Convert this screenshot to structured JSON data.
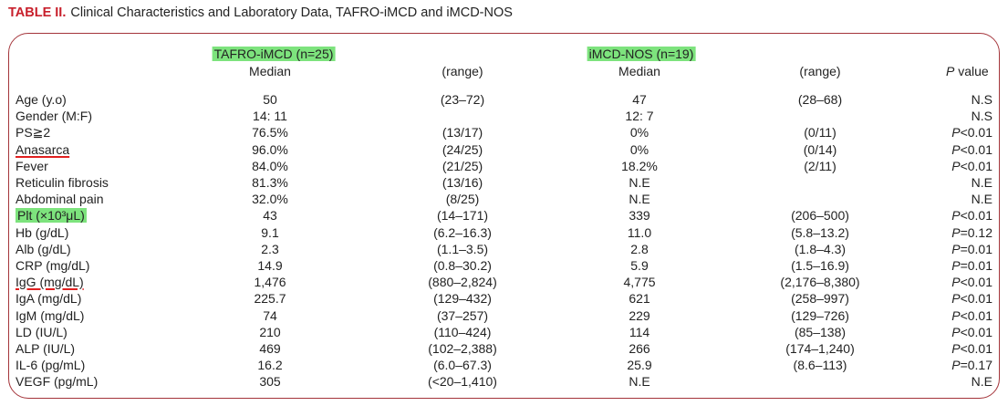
{
  "caption": {
    "label": "TABLE II.",
    "title": "Clinical Characteristics and Laboratory Data, TAFRO-iMCD and iMCD-NOS"
  },
  "header": {
    "group1": "TAFRO-iMCD (n=25)",
    "group2": "iMCD-NOS (n=19)",
    "median1": "Median",
    "range1": "(range)",
    "median2": "Median",
    "range2": "(range)",
    "pvalue_p": "P",
    "pvalue_rest": " value"
  },
  "rows": [
    {
      "label": "Age (y.o)",
      "t_median": "50",
      "t_range": "(23–72)",
      "n_median": "47",
      "n_range": "(28–68)",
      "p": "",
      "p_rest": "N.S"
    },
    {
      "label": "Gender (M:F)",
      "t_median": "14: 11",
      "t_range": "",
      "n_median": "12: 7",
      "n_range": "",
      "p": "",
      "p_rest": "N.S"
    },
    {
      "label": "PS≧2",
      "t_median": "76.5%",
      "t_range": "(13/17)",
      "n_median": "0%",
      "n_range": "(0/11)",
      "p": "P",
      "p_rest": "<0.01"
    },
    {
      "label": "Anasarca",
      "t_median": "96.0%",
      "t_range": "(24/25)",
      "n_median": "0%",
      "n_range": "(0/14)",
      "p": "P",
      "p_rest": "<0.01"
    },
    {
      "label": "Fever",
      "t_median": "84.0%",
      "t_range": "(21/25)",
      "n_median": "18.2%",
      "n_range": "(2/11)",
      "p": "P",
      "p_rest": "<0.01"
    },
    {
      "label": "Reticulin fibrosis",
      "t_median": "81.3%",
      "t_range": "(13/16)",
      "n_median": "N.E",
      "n_range": "",
      "p": "",
      "p_rest": "N.E"
    },
    {
      "label": "Abdominal pain",
      "t_median": "32.0%",
      "t_range": "(8/25)",
      "n_median": "N.E",
      "n_range": "",
      "p": "",
      "p_rest": "N.E"
    },
    {
      "label": "Plt (×10³μL)",
      "t_median": "43",
      "t_range": "(14–171)",
      "n_median": "339",
      "n_range": "(206–500)",
      "p": "P",
      "p_rest": "<0.01"
    },
    {
      "label": "Hb (g/dL)",
      "t_median": "9.1",
      "t_range": "(6.2–16.3)",
      "n_median": "11.0",
      "n_range": "(5.8–13.2)",
      "p": "P",
      "p_rest": "=0.12"
    },
    {
      "label": "Alb (g/dL)",
      "t_median": "2.3",
      "t_range": "(1.1–3.5)",
      "n_median": "2.8",
      "n_range": "(1.8–4.3)",
      "p": "P",
      "p_rest": "=0.01"
    },
    {
      "label": "CRP (mg/dL)",
      "t_median": "14.9",
      "t_range": "(0.8–30.2)",
      "n_median": "5.9",
      "n_range": "(1.5–16.9)",
      "p": "P",
      "p_rest": "=0.01"
    },
    {
      "label": "IgG (mg/dL)",
      "t_median": "1,476",
      "t_range": "(880–2,824)",
      "n_median": "4,775",
      "n_range": "(2,176–8,380)",
      "p": "P",
      "p_rest": "<0.01"
    },
    {
      "label": "IgA (mg/dL)",
      "t_median": "225.7",
      "t_range": "(129–432)",
      "n_median": "621",
      "n_range": "(258–997)",
      "p": "P",
      "p_rest": "<0.01"
    },
    {
      "label": "IgM (mg/dL)",
      "t_median": "74",
      "t_range": "(37–257)",
      "n_median": "229",
      "n_range": "(129–726)",
      "p": "P",
      "p_rest": "<0.01"
    },
    {
      "label": "LD (IU/L)",
      "t_median": "210",
      "t_range": "(110–424)",
      "n_median": "114",
      "n_range": "(85–138)",
      "p": "P",
      "p_rest": "<0.01"
    },
    {
      "label": "ALP (IU/L)",
      "t_median": "469",
      "t_range": "(102–2,388)",
      "n_median": "266",
      "n_range": "(174–1,240)",
      "p": "P",
      "p_rest": "<0.01"
    },
    {
      "label": "IL-6 (pg/mL)",
      "t_median": "16.2",
      "t_range": "(6.0–67.3)",
      "n_median": "25.9",
      "n_range": "(8.6–113)",
      "p": "P",
      "p_rest": "=0.17"
    },
    {
      "label": "VEGF (pg/mL)",
      "t_median": "305",
      "t_range": "(<20–1,410)",
      "n_median": "N.E",
      "n_range": "",
      "p": "",
      "p_rest": "N.E"
    }
  ],
  "highlight_color": "#7de37d",
  "underline_color": "#e02020",
  "frame_color": "#a4343a",
  "label_color": "#c8202c"
}
